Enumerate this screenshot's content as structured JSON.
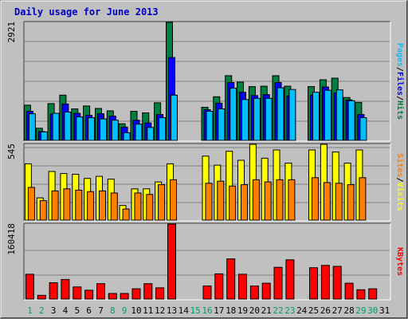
{
  "chart_data": [
    {
      "type": "bar",
      "title": "Daily usage for June 2013",
      "categories": [
        "1",
        "2",
        "3",
        "4",
        "5",
        "6",
        "7",
        "8",
        "9",
        "10",
        "11",
        "12",
        "13",
        "14",
        "15",
        "16",
        "17",
        "18",
        "19",
        "20",
        "21",
        "22",
        "23",
        "24",
        "25",
        "26",
        "27",
        "28",
        "29",
        "30",
        "31"
      ],
      "weekend_days": [
        "1",
        "2",
        "8",
        "9",
        "15",
        "16",
        "22",
        "23",
        "29",
        "30"
      ],
      "ylim": [
        0,
        2921
      ],
      "ytick_label": "2921",
      "legend": [
        {
          "label": "Hits",
          "color": "#008040"
        },
        {
          "label": "Files",
          "color": "#0000ff"
        },
        {
          "label": "Pages",
          "color": "#00c0ff"
        }
      ],
      "series": [
        {
          "name": "Hits",
          "color": "#008040",
          "values": [
            870,
            300,
            910,
            1120,
            780,
            850,
            790,
            730,
            410,
            720,
            680,
            930,
            2921,
            0,
            0,
            820,
            1080,
            1600,
            1440,
            1330,
            1340,
            1600,
            1340,
            0,
            1330,
            1500,
            1540,
            1060,
            940,
            0,
            0
          ]
        },
        {
          "name": "Files",
          "color": "#0000ff",
          "values": [
            720,
            220,
            650,
            900,
            670,
            620,
            660,
            600,
            330,
            500,
            430,
            640,
            2050,
            0,
            0,
            760,
            920,
            1430,
            1190,
            1110,
            1130,
            1430,
            1100,
            0,
            1120,
            1320,
            1170,
            1000,
            640,
            0,
            0
          ]
        },
        {
          "name": "Pages",
          "color": "#00c0ff",
          "values": [
            660,
            210,
            670,
            700,
            580,
            560,
            530,
            500,
            190,
            400,
            320,
            560,
            1120,
            0,
            0,
            720,
            780,
            1290,
            1010,
            1040,
            1040,
            1300,
            1260,
            0,
            1190,
            1240,
            1250,
            980,
            560,
            0,
            0
          ]
        }
      ]
    },
    {
      "type": "bar",
      "ylim": [
        0,
        545
      ],
      "ytick_label": "545",
      "legend": [
        {
          "label": "Visits",
          "color": "#ffff00"
        },
        {
          "label": "Sites",
          "color": "#ff8000"
        }
      ],
      "series": [
        {
          "name": "Visits",
          "color": "#ffff00",
          "values": [
            405,
            160,
            350,
            335,
            330,
            300,
            315,
            295,
            105,
            225,
            225,
            275,
            405,
            0,
            0,
            460,
            395,
            495,
            430,
            545,
            445,
            505,
            410,
            0,
            505,
            545,
            490,
            410,
            505,
            0,
            0
          ]
        },
        {
          "name": "Sites",
          "color": "#ff8000",
          "values": [
            235,
            140,
            210,
            225,
            215,
            205,
            210,
            195,
            80,
            195,
            185,
            255,
            290,
            0,
            0,
            265,
            280,
            245,
            255,
            290,
            275,
            290,
            290,
            0,
            305,
            270,
            265,
            255,
            305,
            0,
            0
          ]
        }
      ]
    },
    {
      "type": "bar",
      "ylim": [
        0,
        160418
      ],
      "ytick_label": "160418",
      "legend": [
        {
          "label": "KBytes",
          "color": "#ff0000"
        }
      ],
      "series": [
        {
          "name": "KBytes",
          "color": "#ff0000",
          "values": [
            53000,
            8000,
            35000,
            42000,
            26000,
            19000,
            33000,
            12000,
            12000,
            22000,
            33000,
            24000,
            160418,
            0,
            0,
            28000,
            54000,
            86000,
            53000,
            28000,
            34000,
            68000,
            84000,
            0,
            67000,
            72000,
            70000,
            34000,
            20000,
            22000,
            0
          ]
        }
      ]
    }
  ],
  "colors": {
    "title": "#0000c0",
    "panel_bg": "#c0c0c0",
    "weekday_label": "#000000",
    "weekend_label": "#00a060",
    "legend_separator": "#000000"
  }
}
